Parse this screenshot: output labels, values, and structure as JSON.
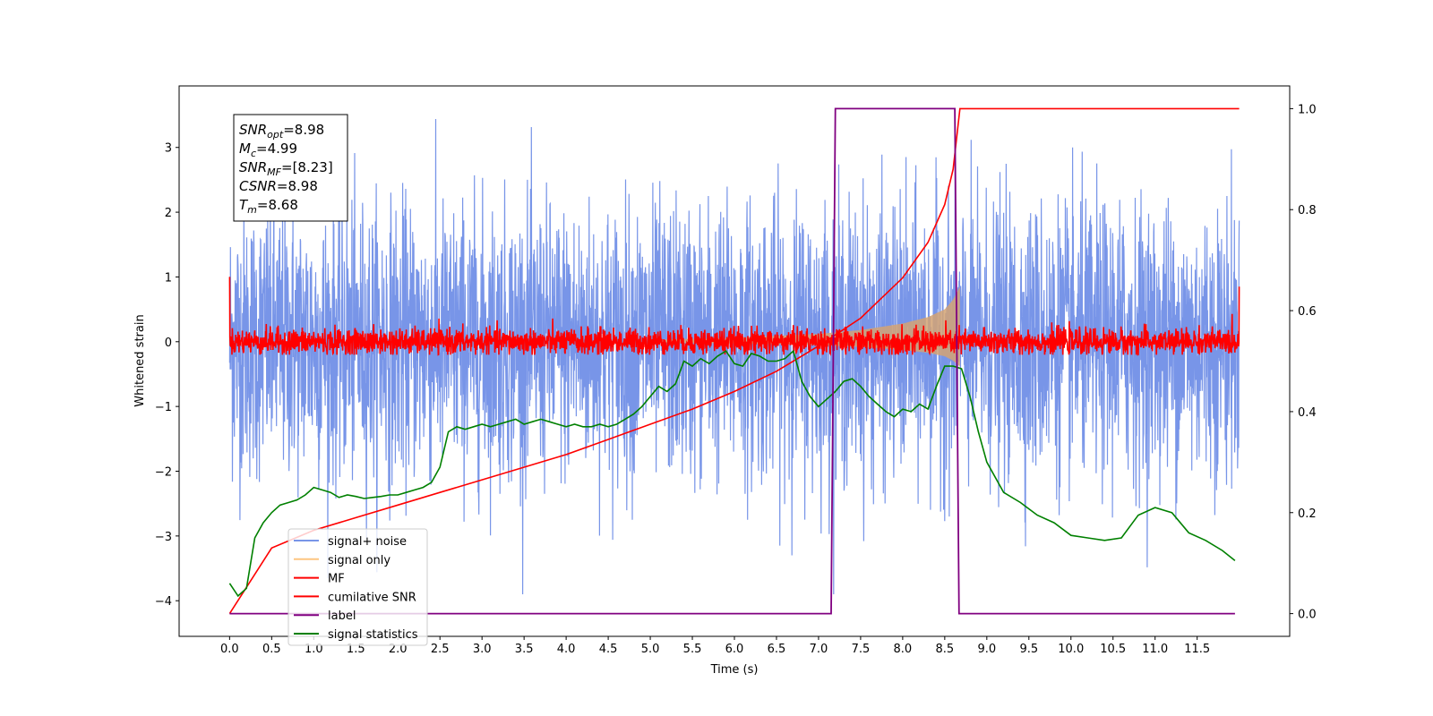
{
  "chart_data": {
    "type": "line",
    "xlabel": "Time (s)",
    "ylabel": "Whitened strain",
    "xlim": [
      -0.6,
      12.6
    ],
    "ylim": [
      -4.55,
      3.95
    ],
    "y2lim": [
      -0.045,
      1.045
    ],
    "x_ticks": [
      "0.0",
      "0.5",
      "1.0",
      "1.5",
      "2.0",
      "2.5",
      "3.0",
      "3.5",
      "4.0",
      "4.5",
      "5.0",
      "5.5",
      "6.0",
      "6.5",
      "7.0",
      "7.5",
      "8.0",
      "8.5",
      "9.0",
      "9.5",
      "10.0",
      "10.5",
      "11.0",
      "11.5"
    ],
    "y_ticks": [
      "3",
      "2",
      "1",
      "0",
      "−1",
      "−2",
      "−3",
      "−4"
    ],
    "y2_ticks": [
      "1.0",
      "0.8",
      "0.6",
      "0.4",
      "0.2",
      "0.0"
    ],
    "info_box": {
      "lines": [
        {
          "main": "SNR",
          "sub": "opt",
          "value": "=8.98"
        },
        {
          "main": "M",
          "sub": "c",
          "value": "=4.99"
        },
        {
          "main": "SNR",
          "sub": "MF",
          "value": "=[8.23]"
        },
        {
          "main": "CSNR",
          "sub": "",
          "value": "=8.98"
        },
        {
          "main": "T",
          "sub": "m",
          "value": "=8.68"
        }
      ]
    },
    "legend": {
      "position": "lower-left",
      "entries": [
        {
          "label": "signal+ noise",
          "color": "#7895e8"
        },
        {
          "label": "signal only",
          "color": "#fdc681"
        },
        {
          "label": "MF",
          "color": "#ff0000"
        },
        {
          "label": "cumilative SNR",
          "color": "#ff0000"
        },
        {
          "label": "label",
          "color": "#800080"
        },
        {
          "label": "signal statistics",
          "color": "#008000"
        }
      ]
    },
    "series": [
      {
        "name": "signal+ noise",
        "axis": "left",
        "color": "#7895e8",
        "x_range": [
          0,
          12.0
        ],
        "envelope": [
          -3.9,
          3.5
        ],
        "description_values": "noisy whitened strain ~ N(0,1)"
      },
      {
        "name": "signal only",
        "axis": "left",
        "color": "#d4a373",
        "envelope": {
          "x": [
            5.0,
            6.0,
            7.0,
            7.5,
            8.0,
            8.3,
            8.5,
            8.6,
            8.68
          ],
          "amplitude": [
            0.03,
            0.06,
            0.12,
            0.18,
            0.28,
            0.38,
            0.5,
            0.65,
            0.85
          ]
        }
      },
      {
        "name": "MF",
        "axis": "left",
        "color": "#ff0000",
        "x_range": [
          0,
          12.0
        ],
        "envelope": [
          -0.2,
          0.45
        ],
        "start_value": 1.0,
        "end_value": 0.85
      },
      {
        "name": "cumilative SNR",
        "axis": "right",
        "color": "#ff0000",
        "x": [
          0.0,
          0.5,
          1.0,
          1.5,
          2.0,
          2.5,
          3.0,
          3.5,
          4.0,
          4.5,
          5.0,
          5.5,
          6.0,
          6.5,
          7.0,
          7.5,
          8.0,
          8.3,
          8.5,
          8.6,
          8.68,
          12.0
        ],
        "y": [
          0.0,
          0.13,
          0.165,
          0.19,
          0.215,
          0.24,
          0.265,
          0.29,
          0.315,
          0.345,
          0.375,
          0.405,
          0.44,
          0.48,
          0.53,
          0.585,
          0.665,
          0.735,
          0.81,
          0.88,
          1.0,
          1.0
        ]
      },
      {
        "name": "label",
        "axis": "right",
        "color": "#800080",
        "x": [
          0.0,
          7.15,
          7.2,
          8.62,
          8.67,
          11.95
        ],
        "y": [
          0.0,
          0.0,
          1.0,
          1.0,
          0.0,
          0.0
        ]
      },
      {
        "name": "signal statistics",
        "axis": "right",
        "color": "#008000",
        "x": [
          0.0,
          0.1,
          0.2,
          0.3,
          0.4,
          0.5,
          0.6,
          0.7,
          0.8,
          0.9,
          1.0,
          1.1,
          1.2,
          1.3,
          1.4,
          1.5,
          1.6,
          1.7,
          1.8,
          1.9,
          2.0,
          2.1,
          2.2,
          2.3,
          2.4,
          2.5,
          2.6,
          2.7,
          2.8,
          2.9,
          3.0,
          3.1,
          3.2,
          3.3,
          3.4,
          3.5,
          3.6,
          3.7,
          3.8,
          3.9,
          4.0,
          4.1,
          4.2,
          4.3,
          4.4,
          4.5,
          4.6,
          4.7,
          4.8,
          4.9,
          5.0,
          5.1,
          5.2,
          5.3,
          5.4,
          5.5,
          5.6,
          5.7,
          5.8,
          5.9,
          6.0,
          6.1,
          6.2,
          6.3,
          6.4,
          6.5,
          6.6,
          6.7,
          6.8,
          6.9,
          7.0,
          7.1,
          7.2,
          7.3,
          7.4,
          7.5,
          7.6,
          7.7,
          7.8,
          7.9,
          8.0,
          8.1,
          8.2,
          8.3,
          8.4,
          8.5,
          8.6,
          8.7,
          8.8,
          8.9,
          9.0,
          9.2,
          9.4,
          9.6,
          9.8,
          10.0,
          10.2,
          10.4,
          10.6,
          10.8,
          11.0,
          11.2,
          11.4,
          11.6,
          11.8,
          11.95
        ],
        "y": [
          0.06,
          0.035,
          0.05,
          0.15,
          0.18,
          0.2,
          0.215,
          0.22,
          0.225,
          0.235,
          0.25,
          0.245,
          0.24,
          0.23,
          0.235,
          0.232,
          0.228,
          0.23,
          0.232,
          0.235,
          0.235,
          0.24,
          0.245,
          0.25,
          0.26,
          0.29,
          0.36,
          0.37,
          0.365,
          0.37,
          0.375,
          0.37,
          0.375,
          0.38,
          0.385,
          0.375,
          0.38,
          0.385,
          0.38,
          0.375,
          0.37,
          0.375,
          0.37,
          0.37,
          0.375,
          0.37,
          0.375,
          0.385,
          0.395,
          0.41,
          0.43,
          0.45,
          0.44,
          0.455,
          0.5,
          0.49,
          0.505,
          0.495,
          0.51,
          0.52,
          0.495,
          0.49,
          0.515,
          0.51,
          0.5,
          0.5,
          0.505,
          0.52,
          0.46,
          0.43,
          0.41,
          0.425,
          0.44,
          0.46,
          0.465,
          0.45,
          0.43,
          0.415,
          0.4,
          0.39,
          0.405,
          0.4,
          0.415,
          0.405,
          0.45,
          0.49,
          0.49,
          0.485,
          0.43,
          0.36,
          0.3,
          0.24,
          0.22,
          0.195,
          0.18,
          0.155,
          0.15,
          0.145,
          0.15,
          0.195,
          0.21,
          0.2,
          0.16,
          0.145,
          0.125,
          0.105
        ]
      }
    ]
  }
}
